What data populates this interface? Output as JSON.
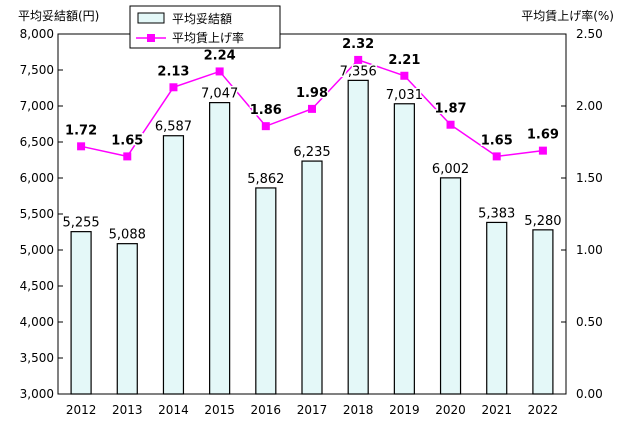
{
  "chart_data": {
    "type": "bar+line",
    "left_axis_title": "平均妥結額(円)",
    "right_axis_title": "平均賃上げ率(%)",
    "categories": [
      "2012",
      "2013",
      "2014",
      "2015",
      "2016",
      "2017",
      "2018",
      "2019",
      "2020",
      "2021",
      "2022"
    ],
    "series": [
      {
        "name": "平均妥結額",
        "type": "bar",
        "axis": "left",
        "values": [
          5255,
          5088,
          6587,
          7047,
          5862,
          6235,
          7356,
          7031,
          6002,
          5383,
          5280
        ],
        "labels": [
          "5,255",
          "5,088",
          "6,587",
          "7,047",
          "5,862",
          "6,235",
          "7,356",
          "7,031",
          "6,002",
          "5,383",
          "5,280"
        ]
      },
      {
        "name": "平均賃上げ率",
        "type": "line",
        "axis": "right",
        "values": [
          1.72,
          1.65,
          2.13,
          2.24,
          1.86,
          1.98,
          2.32,
          2.21,
          1.87,
          1.65,
          1.69
        ],
        "labels": [
          "1.72",
          "1.65",
          "2.13",
          "2.24",
          "1.86",
          "1.98",
          "2.32",
          "2.21",
          "1.87",
          "1.65",
          "1.69"
        ]
      }
    ],
    "left_ylim": [
      3000,
      8000
    ],
    "left_ticks": [
      "3,000",
      "3,500",
      "4,000",
      "4,500",
      "5,000",
      "5,500",
      "6,000",
      "6,500",
      "7,000",
      "7,500",
      "8,000"
    ],
    "right_ylim": [
      0,
      2.5
    ],
    "right_ticks": [
      "0.00",
      "0.50",
      "1.00",
      "1.50",
      "2.00",
      "2.50"
    ],
    "bar_fill": "#e4f8f8",
    "bar_stroke": "#000000",
    "line_color": "#ff00ff",
    "legend_position": "top-left",
    "grid": false
  }
}
